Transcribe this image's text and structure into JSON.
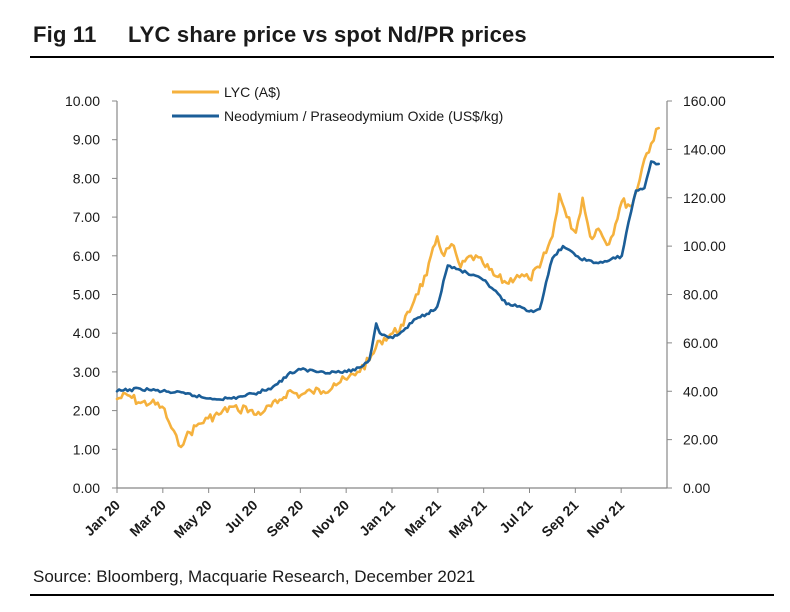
{
  "figure": {
    "number": "Fig 11",
    "title": "LYC share price vs spot Nd/PR prices",
    "source": "Source: Bloomberg, Macquarie Research, December 2021"
  },
  "chart_data": {
    "type": "line",
    "xlabels": [
      "Jan 20",
      "Mar 20",
      "May 20",
      "Jul 20",
      "Sep 20",
      "Nov 20",
      "Jan 21",
      "Mar 21",
      "May 21",
      "Jul 21",
      "Sep 21",
      "Nov 21"
    ],
    "x_range": [
      "2020-01-01",
      "2021-12-31"
    ],
    "y_left": {
      "min": 0,
      "max": 10,
      "ticks": [
        "0.00",
        "1.00",
        "2.00",
        "3.00",
        "4.00",
        "5.00",
        "6.00",
        "7.00",
        "8.00",
        "9.00",
        "10.00"
      ]
    },
    "y_right": {
      "min": 0,
      "max": 160,
      "ticks": [
        "0.00",
        "20.00",
        "40.00",
        "60.00",
        "80.00",
        "100.00",
        "120.00",
        "140.00",
        "160.00"
      ]
    },
    "legend_position": "top-left",
    "grid": false,
    "series": [
      {
        "name": "LYC (A$)",
        "axis": "left",
        "color": "#F5B13D",
        "x": [
          "2020-01-01",
          "2020-01-15",
          "2020-02-01",
          "2020-02-15",
          "2020-03-01",
          "2020-03-10",
          "2020-03-23",
          "2020-04-01",
          "2020-04-15",
          "2020-05-01",
          "2020-05-15",
          "2020-06-01",
          "2020-06-10",
          "2020-06-20",
          "2020-07-01",
          "2020-07-15",
          "2020-08-01",
          "2020-08-15",
          "2020-09-01",
          "2020-09-15",
          "2020-10-01",
          "2020-10-15",
          "2020-11-01",
          "2020-11-15",
          "2020-12-01",
          "2020-12-15",
          "2021-01-01",
          "2021-01-15",
          "2021-02-01",
          "2021-02-15",
          "2021-03-01",
          "2021-03-10",
          "2021-03-20",
          "2021-04-01",
          "2021-04-15",
          "2021-05-01",
          "2021-05-15",
          "2021-06-01",
          "2021-06-15",
          "2021-07-01",
          "2021-07-15",
          "2021-08-01",
          "2021-08-10",
          "2021-08-20",
          "2021-09-01",
          "2021-09-10",
          "2021-09-20",
          "2021-10-01",
          "2021-10-15",
          "2021-11-01",
          "2021-11-15",
          "2021-12-01",
          "2021-12-10",
          "2021-12-20"
        ],
        "values": [
          2.3,
          2.4,
          2.2,
          2.2,
          2.1,
          1.7,
          1.1,
          1.3,
          1.6,
          1.8,
          1.9,
          2.1,
          2.0,
          2.1,
          1.9,
          2.0,
          2.2,
          2.5,
          2.4,
          2.5,
          2.5,
          2.7,
          2.8,
          3.0,
          3.3,
          3.8,
          4.0,
          4.2,
          5.0,
          5.5,
          6.5,
          6.0,
          6.3,
          5.7,
          6.0,
          5.8,
          5.5,
          5.3,
          5.5,
          5.4,
          5.7,
          6.5,
          7.6,
          7.0,
          6.6,
          7.5,
          6.5,
          6.7,
          6.3,
          7.4,
          7.3,
          8.5,
          8.9,
          9.3
        ]
      },
      {
        "name": "Neodymium / Praseodymium Oxide (US$/kg)",
        "axis": "right",
        "color": "#1B5E98",
        "x": [
          "2020-01-01",
          "2020-02-01",
          "2020-03-01",
          "2020-04-01",
          "2020-05-01",
          "2020-06-01",
          "2020-07-01",
          "2020-07-20",
          "2020-08-01",
          "2020-08-15",
          "2020-09-01",
          "2020-10-01",
          "2020-11-01",
          "2020-11-20",
          "2020-12-01",
          "2020-12-10",
          "2020-12-15",
          "2021-01-01",
          "2021-01-15",
          "2021-02-01",
          "2021-02-15",
          "2021-03-01",
          "2021-03-15",
          "2021-04-01",
          "2021-04-15",
          "2021-05-01",
          "2021-05-15",
          "2021-06-01",
          "2021-06-15",
          "2021-07-01",
          "2021-07-15",
          "2021-08-01",
          "2021-08-15",
          "2021-09-01",
          "2021-09-15",
          "2021-10-01",
          "2021-10-15",
          "2021-11-01",
          "2021-11-10",
          "2021-11-20",
          "2021-12-01",
          "2021-12-10",
          "2021-12-20"
        ],
        "values": [
          40,
          41,
          40,
          39,
          37,
          37,
          39,
          41,
          43,
          47,
          49,
          48,
          48,
          50,
          53,
          68,
          64,
          62,
          65,
          70,
          72,
          75,
          92,
          90,
          88,
          86,
          82,
          76,
          75,
          73,
          74,
          95,
          100,
          96,
          94,
          93,
          94,
          96,
          110,
          123,
          124,
          135,
          134
        ]
      }
    ]
  }
}
